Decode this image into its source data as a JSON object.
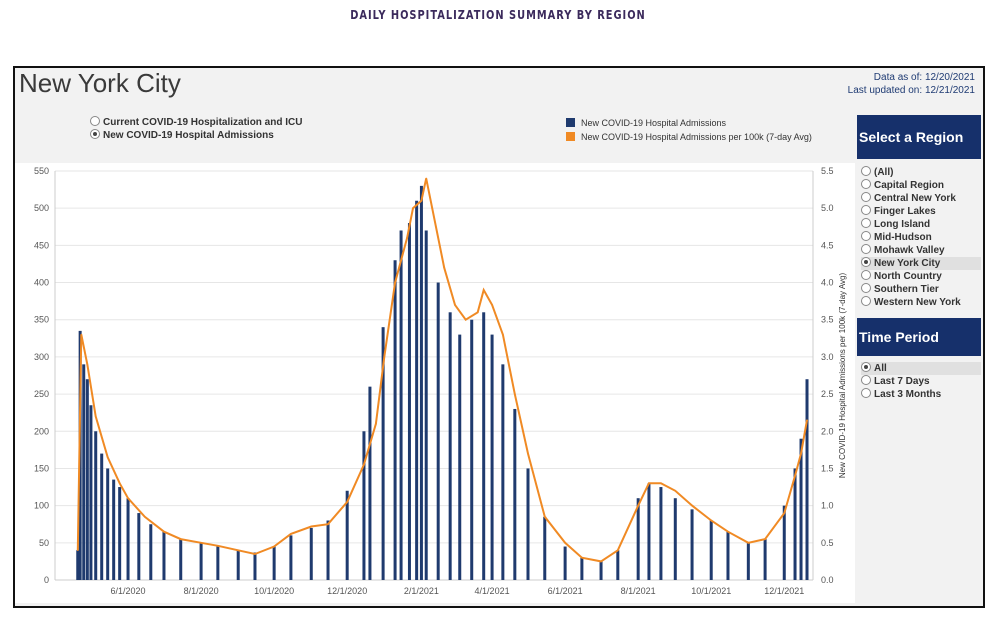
{
  "page_heading": "DAILY HOSPITALIZATION SUMMARY BY REGION",
  "region_title": "New York City",
  "data_as_of_label": "Data as of:",
  "data_as_of": "12/20/2021",
  "last_updated_label": "Last updated on:",
  "last_updated": "12/21/2021",
  "metric_options": [
    {
      "label": "Current COVID-19 Hospitalization and ICU",
      "selected": false
    },
    {
      "label": "New COVID-19 Hospital Admissions",
      "selected": true
    }
  ],
  "select_region_header": "Select a Region",
  "regions": [
    {
      "label": "(All)",
      "selected": false
    },
    {
      "label": "Capital Region",
      "selected": false
    },
    {
      "label": "Central New York",
      "selected": false
    },
    {
      "label": "Finger Lakes",
      "selected": false
    },
    {
      "label": "Long Island",
      "selected": false
    },
    {
      "label": "Mid-Hudson",
      "selected": false
    },
    {
      "label": "Mohawk Valley",
      "selected": false
    },
    {
      "label": "New York City",
      "selected": true
    },
    {
      "label": "North Country",
      "selected": false
    },
    {
      "label": "Southern Tier",
      "selected": false
    },
    {
      "label": "Western New York",
      "selected": false
    }
  ],
  "time_period_header": "Time Period",
  "time_periods": [
    {
      "label": "All",
      "selected": true
    },
    {
      "label": "Last 7 Days",
      "selected": false
    },
    {
      "label": "Last 3 Months",
      "selected": false
    }
  ],
  "colors": {
    "bars": "#1f3a6e",
    "line": "#f08a24",
    "header_bg": "#16306b"
  },
  "chart_data": {
    "type": "bar",
    "series": [
      {
        "name": "New COVID-19 Hospital Admissions",
        "type": "bar",
        "axis": "left",
        "points": [
          [
            "2020-04-20",
            40
          ],
          [
            "2020-04-22",
            335
          ],
          [
            "2020-04-25",
            290
          ],
          [
            "2020-04-28",
            270
          ],
          [
            "2020-05-01",
            235
          ],
          [
            "2020-05-05",
            200
          ],
          [
            "2020-05-10",
            170
          ],
          [
            "2020-05-15",
            150
          ],
          [
            "2020-05-20",
            135
          ],
          [
            "2020-05-25",
            125
          ],
          [
            "2020-06-01",
            110
          ],
          [
            "2020-06-10",
            90
          ],
          [
            "2020-06-20",
            75
          ],
          [
            "2020-07-01",
            65
          ],
          [
            "2020-07-15",
            55
          ],
          [
            "2020-08-01",
            50
          ],
          [
            "2020-08-15",
            45
          ],
          [
            "2020-09-01",
            40
          ],
          [
            "2020-09-15",
            37
          ],
          [
            "2020-10-01",
            45
          ],
          [
            "2020-10-15",
            60
          ],
          [
            "2020-11-01",
            70
          ],
          [
            "2020-11-15",
            80
          ],
          [
            "2020-12-01",
            120
          ],
          [
            "2020-12-15",
            200
          ],
          [
            "2020-12-20",
            260
          ],
          [
            "2020-12-31",
            340
          ],
          [
            "2021-01-10",
            430
          ],
          [
            "2021-01-15",
            470
          ],
          [
            "2021-01-22",
            480
          ],
          [
            "2021-01-28",
            510
          ],
          [
            "2021-02-01",
            530
          ],
          [
            "2021-02-05",
            470
          ],
          [
            "2021-02-15",
            400
          ],
          [
            "2021-02-25",
            360
          ],
          [
            "2021-03-05",
            330
          ],
          [
            "2021-03-15",
            350
          ],
          [
            "2021-03-25",
            360
          ],
          [
            "2021-04-01",
            330
          ],
          [
            "2021-04-10",
            290
          ],
          [
            "2021-04-20",
            230
          ],
          [
            "2021-05-01",
            150
          ],
          [
            "2021-05-15",
            85
          ],
          [
            "2021-06-01",
            45
          ],
          [
            "2021-06-15",
            30
          ],
          [
            "2021-07-01",
            25
          ],
          [
            "2021-07-15",
            40
          ],
          [
            "2021-08-01",
            110
          ],
          [
            "2021-08-10",
            130
          ],
          [
            "2021-08-20",
            125
          ],
          [
            "2021-09-01",
            110
          ],
          [
            "2021-09-15",
            95
          ],
          [
            "2021-10-01",
            80
          ],
          [
            "2021-10-15",
            65
          ],
          [
            "2021-11-01",
            50
          ],
          [
            "2021-11-15",
            55
          ],
          [
            "2021-12-01",
            100
          ],
          [
            "2021-12-10",
            150
          ],
          [
            "2021-12-15",
            190
          ],
          [
            "2021-12-20",
            270
          ]
        ]
      },
      {
        "name": "New COVID-19 Hospital Admissions per 100k (7-day Avg)",
        "type": "line",
        "axis": "right",
        "points": [
          [
            "2020-04-20",
            0.4
          ],
          [
            "2020-04-23",
            3.3
          ],
          [
            "2020-04-28",
            2.9
          ],
          [
            "2020-05-05",
            2.2
          ],
          [
            "2020-05-15",
            1.65
          ],
          [
            "2020-05-25",
            1.3
          ],
          [
            "2020-06-01",
            1.1
          ],
          [
            "2020-06-15",
            0.85
          ],
          [
            "2020-07-01",
            0.65
          ],
          [
            "2020-07-15",
            0.55
          ],
          [
            "2020-08-01",
            0.5
          ],
          [
            "2020-08-15",
            0.46
          ],
          [
            "2020-09-01",
            0.4
          ],
          [
            "2020-09-15",
            0.35
          ],
          [
            "2020-10-01",
            0.45
          ],
          [
            "2020-10-15",
            0.62
          ],
          [
            "2020-11-01",
            0.72
          ],
          [
            "2020-11-15",
            0.75
          ],
          [
            "2020-12-01",
            1.05
          ],
          [
            "2020-12-15",
            1.55
          ],
          [
            "2020-12-25",
            2.1
          ],
          [
            "2021-01-01",
            3.0
          ],
          [
            "2021-01-10",
            4.0
          ],
          [
            "2021-01-20",
            4.6
          ],
          [
            "2021-01-25",
            5.0
          ],
          [
            "2021-02-01",
            5.1
          ],
          [
            "2021-02-05",
            5.4
          ],
          [
            "2021-02-10",
            5.0
          ],
          [
            "2021-02-20",
            4.2
          ],
          [
            "2021-03-01",
            3.7
          ],
          [
            "2021-03-10",
            3.5
          ],
          [
            "2021-03-20",
            3.6
          ],
          [
            "2021-03-25",
            3.9
          ],
          [
            "2021-04-01",
            3.7
          ],
          [
            "2021-04-10",
            3.3
          ],
          [
            "2021-04-20",
            2.5
          ],
          [
            "2021-05-01",
            1.7
          ],
          [
            "2021-05-15",
            0.85
          ],
          [
            "2021-06-01",
            0.5
          ],
          [
            "2021-06-15",
            0.3
          ],
          [
            "2021-07-01",
            0.25
          ],
          [
            "2021-07-15",
            0.4
          ],
          [
            "2021-08-01",
            1.0
          ],
          [
            "2021-08-10",
            1.3
          ],
          [
            "2021-08-20",
            1.3
          ],
          [
            "2021-09-01",
            1.2
          ],
          [
            "2021-09-15",
            1.0
          ],
          [
            "2021-10-01",
            0.8
          ],
          [
            "2021-10-15",
            0.65
          ],
          [
            "2021-11-01",
            0.5
          ],
          [
            "2021-11-15",
            0.55
          ],
          [
            "2021-12-01",
            0.9
          ],
          [
            "2021-12-10",
            1.4
          ],
          [
            "2021-12-15",
            1.7
          ],
          [
            "2021-12-20",
            2.15
          ]
        ]
      }
    ],
    "x_range": [
      "2020-04-01",
      "2021-12-25"
    ],
    "x_ticks": [
      "6/1/2020",
      "8/1/2020",
      "10/1/2020",
      "12/1/2020",
      "2/1/2021",
      "4/1/2021",
      "6/1/2021",
      "8/1/2021",
      "10/1/2021",
      "12/1/2021"
    ],
    "y_left_ticks": [
      0,
      50,
      100,
      150,
      200,
      250,
      300,
      350,
      400,
      450,
      500,
      550
    ],
    "y_left_range": [
      0,
      550
    ],
    "y_right_ticks": [
      "0.0",
      "0.5",
      "1.0",
      "1.5",
      "2.0",
      "2.5",
      "3.0",
      "3.5",
      "4.0",
      "4.5",
      "5.0",
      "5.5"
    ],
    "y_right_range": [
      0,
      5.5
    ],
    "y_right_label": "New COVID-19 Hospital Admissions per 100k (7-day Avg)",
    "grid": true
  }
}
